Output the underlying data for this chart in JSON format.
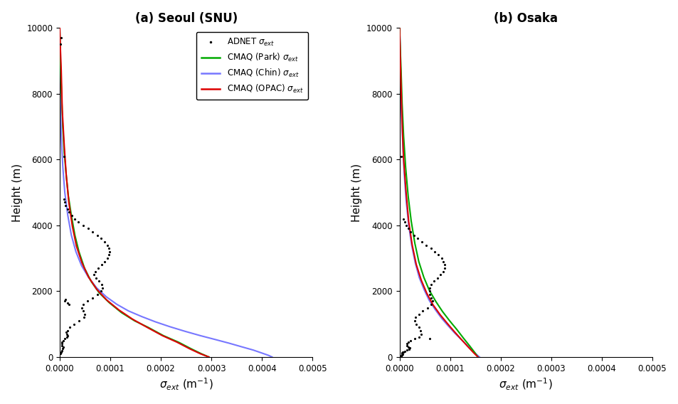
{
  "title_a": "(a) Seoul (SNU)",
  "title_b": "(b) Osaka",
  "xlabel_latex": "sigma_ext (m-1)",
  "ylabel": "Height (m)",
  "xlim": [
    0,
    0.0005
  ],
  "ylim": [
    0,
    10000
  ],
  "xticks": [
    0.0,
    0.0001,
    0.0002,
    0.0003,
    0.0004,
    0.0005
  ],
  "yticks": [
    0,
    2000,
    4000,
    6000,
    8000,
    10000
  ],
  "park_color": "#00aa00",
  "chin_color": "#7777ff",
  "opac_color": "#dd0000",
  "adnet_color": "#000000",
  "seoul_park_x": [
    0.000295,
    0.00028,
    0.00026,
    0.000235,
    0.000205,
    0.000175,
    0.000148,
    0.000122,
    9.8e-05,
    7.8e-05,
    6.2e-05,
    4.9e-05,
    3.8e-05,
    3e-05,
    2.3e-05,
    1.7e-05,
    1.3e-05,
    9e-06,
    6e-06,
    4e-06,
    2e-06,
    1e-06,
    3e-07,
    0.0
  ],
  "seoul_park_y": [
    0,
    100,
    250,
    450,
    650,
    900,
    1100,
    1350,
    1650,
    1950,
    2300,
    2700,
    3200,
    3700,
    4300,
    4900,
    5500,
    6200,
    7000,
    7800,
    8700,
    9200,
    9700,
    10000
  ],
  "seoul_chin_x": [
    0.00042,
    0.000413,
    0.0004,
    0.000383,
    0.00036,
    0.000335,
    0.000308,
    0.000278,
    0.000248,
    0.000218,
    0.000189,
    0.000162,
    0.000136,
    0.000113,
    9.2e-05,
    7.3e-05,
    5.7e-05,
    4.3e-05,
    3.2e-05,
    2.3e-05,
    1.6e-05,
    1e-05,
    6e-06,
    3e-06,
    1e-06,
    0.0
  ],
  "seoul_chin_y": [
    0,
    50,
    120,
    210,
    310,
    420,
    530,
    650,
    780,
    920,
    1070,
    1230,
    1400,
    1600,
    1830,
    2100,
    2420,
    2780,
    3200,
    3700,
    4300,
    5000,
    5800,
    6700,
    7800,
    10000
  ],
  "seoul_opac_x": [
    0.000295,
    0.000278,
    0.000257,
    0.000232,
    0.000203,
    0.000173,
    0.000144,
    0.000117,
    9.3e-05,
    7.3e-05,
    5.7e-05,
    4.4e-05,
    3.3e-05,
    2.5e-05,
    1.8e-05,
    1.3e-05,
    9e-06,
    5e-06,
    3e-06,
    1e-06,
    0.0
  ],
  "seoul_opac_y": [
    0,
    100,
    250,
    450,
    650,
    900,
    1150,
    1430,
    1730,
    2060,
    2430,
    2860,
    3370,
    3970,
    4700,
    5500,
    6400,
    7500,
    8700,
    9500,
    10000
  ],
  "seoul_adnet_x": [
    8e-06,
    1e-05,
    1.2e-05,
    1.5e-05,
    1.9e-05,
    2.4e-05,
    3e-05,
    3.7e-05,
    4.6e-05,
    5.6e-05,
    6.5e-05,
    7.4e-05,
    8.2e-05,
    8.9e-05,
    9.4e-05,
    9.7e-05,
    9.8e-05,
    9.7e-05,
    9.4e-05,
    8.9e-05,
    8.3e-05,
    7.6e-05,
    7e-05,
    6.8e-05,
    7.2e-05,
    7.8e-05,
    8.3e-05,
    8.5e-05,
    8.2e-05,
    7.5e-05,
    6.5e-05,
    5.5e-05,
    4.7e-05,
    4.3e-05,
    4.6e-05,
    5e-05,
    4.8e-05,
    3.8e-05,
    2.8e-05,
    2e-05,
    1.5e-05,
    1.3e-05,
    1.4e-05,
    1.6e-05,
    1.4e-05,
    1e-05,
    7e-06,
    5e-06,
    4e-06,
    5e-06,
    7e-06,
    6e-06,
    4e-06,
    3e-06,
    2e-06,
    1e-05,
    1.2e-05,
    8e-06,
    1.6e-05,
    1.8e-05,
    3e-06,
    2e-06
  ],
  "seoul_adnet_y": [
    4800,
    4700,
    4600,
    4500,
    4400,
    4300,
    4200,
    4100,
    4000,
    3900,
    3800,
    3700,
    3600,
    3500,
    3400,
    3300,
    3200,
    3100,
    3000,
    2900,
    2800,
    2700,
    2600,
    2500,
    2400,
    2300,
    2200,
    2100,
    2000,
    1900,
    1800,
    1700,
    1600,
    1500,
    1400,
    1300,
    1200,
    1100,
    1000,
    900,
    800,
    750,
    700,
    650,
    600,
    550,
    500,
    450,
    400,
    350,
    300,
    250,
    200,
    150,
    100,
    1700,
    1750,
    6100,
    1650,
    1600,
    9700,
    9500
  ],
  "osaka_park_x": [
    0.000155,
    0.000148,
    0.000138,
    0.000126,
    0.000113,
    9.9e-05,
    8.5e-05,
    7.2e-05,
    5.9e-05,
    4.8e-05,
    3.8e-05,
    3e-05,
    2.3e-05,
    1.7e-05,
    1.2e-05,
    8e-06,
    5e-06,
    3e-06,
    1e-06,
    0.0
  ],
  "osaka_park_y": [
    0,
    150,
    350,
    580,
    840,
    1100,
    1380,
    1680,
    2020,
    2420,
    2900,
    3470,
    4130,
    4890,
    5760,
    6700,
    7700,
    8700,
    9500,
    10000
  ],
  "osaka_chin_x": [
    0.000158,
    0.000152,
    0.000144,
    0.000134,
    0.000122,
    0.000109,
    9.6e-05,
    8.3e-05,
    7.1e-05,
    5.9e-05,
    4.9e-05,
    3.9e-05,
    3.1e-05,
    2.4e-05,
    1.8e-05,
    1.3e-05,
    9e-06,
    6e-06,
    3e-06,
    2e-06,
    1e-06,
    0.0
  ],
  "osaka_chin_y": [
    0,
    80,
    200,
    350,
    530,
    730,
    950,
    1180,
    1430,
    1710,
    2030,
    2410,
    2860,
    3390,
    4010,
    4750,
    5620,
    6600,
    7700,
    8700,
    9500,
    10000
  ],
  "osaka_opac_x": [
    0.000155,
    0.000147,
    0.000136,
    0.000123,
    0.000109,
    9.5e-05,
    8e-05,
    6.6e-05,
    5.4e-05,
    4.3e-05,
    3.3e-05,
    2.5e-05,
    1.8e-05,
    1.3e-05,
    8e-06,
    5e-06,
    3e-06,
    1e-06,
    0.0
  ],
  "osaka_opac_y": [
    0,
    120,
    300,
    520,
    760,
    1010,
    1290,
    1590,
    1930,
    2330,
    2810,
    3400,
    4120,
    4980,
    6000,
    7100,
    8200,
    9300,
    10000
  ],
  "osaka_adnet_x": [
    8e-06,
    1e-05,
    1.3e-05,
    1.7e-05,
    2.2e-05,
    2.8e-05,
    3.6e-05,
    4.4e-05,
    5.3e-05,
    6.2e-05,
    7e-05,
    7.7e-05,
    8.3e-05,
    8.7e-05,
    8.9e-05,
    8.9e-05,
    8.6e-05,
    8.1e-05,
    7.5e-05,
    6.8e-05,
    6.3e-05,
    6e-05,
    5.9e-05,
    6e-05,
    6.3e-05,
    6.5e-05,
    6.2e-05,
    5.5e-05,
    4.6e-05,
    3.8e-05,
    3.2e-05,
    3e-05,
    3.3e-05,
    3.8e-05,
    4.2e-05,
    4.3e-05,
    3.8e-05,
    3e-05,
    2.2e-05,
    1.7e-05,
    1.4e-05,
    1.4e-05,
    1.7e-05,
    2e-05,
    1.9e-05,
    1.5e-05,
    1.1e-05,
    8e-06,
    6e-06,
    5e-06,
    5e-06,
    6e-06,
    5e-06,
    4e-06,
    3e-06,
    2e-06,
    6e-05,
    3e-06
  ],
  "osaka_adnet_y": [
    4200,
    4100,
    4000,
    3900,
    3800,
    3700,
    3600,
    3500,
    3400,
    3300,
    3200,
    3100,
    3000,
    2900,
    2800,
    2700,
    2600,
    2500,
    2400,
    2300,
    2200,
    2100,
    2000,
    1900,
    1800,
    1700,
    1600,
    1500,
    1400,
    1300,
    1200,
    1100,
    1000,
    900,
    800,
    700,
    600,
    550,
    500,
    450,
    400,
    350,
    300,
    270,
    240,
    210,
    180,
    160,
    140,
    120,
    100,
    80,
    60,
    40,
    20,
    10,
    550,
    6100
  ]
}
